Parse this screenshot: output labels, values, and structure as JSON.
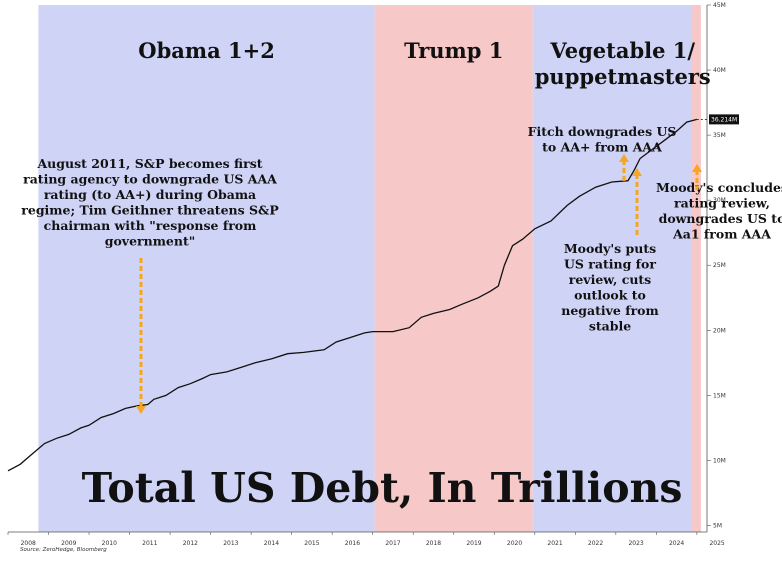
{
  "chart_data": {
    "type": "line",
    "title": "Total US Debt, In Trillions",
    "source": "Source: ZeroHedge, Bloomberg",
    "x_range": [
      2008.0,
      2025.25
    ],
    "y_range": [
      4.5,
      45
    ],
    "x_ticks": [
      "2008",
      "2009",
      "2010",
      "2011",
      "2012",
      "2013",
      "2014",
      "2015",
      "2016",
      "2017",
      "2018",
      "2019",
      "2020",
      "2021",
      "2022",
      "2023",
      "2024",
      "2025"
    ],
    "y_ticks": [
      {
        "value": 5,
        "label": "5M"
      },
      {
        "value": 10,
        "label": "10M"
      },
      {
        "value": 15,
        "label": "15M"
      },
      {
        "value": 20,
        "label": "20M"
      },
      {
        "value": 25,
        "label": "25M"
      },
      {
        "value": 30,
        "label": "30M"
      },
      {
        "value": 35,
        "label": "35M"
      },
      {
        "value": 40,
        "label": "40M"
      },
      {
        "value": 45,
        "label": "45M"
      }
    ],
    "last_value_label": "36.214M",
    "last_value": 36.21,
    "periods": [
      {
        "label_lines": [
          "Obama 1+2"
        ],
        "start": 2008.75,
        "end": 2017.05,
        "color": "#cfd3f5"
      },
      {
        "label_lines": [
          "Trump 1"
        ],
        "start": 2017.05,
        "end": 2020.95,
        "color": "#f7c8c8"
      },
      {
        "label_lines": [
          "Vegetable 1/",
          "puppetmasters"
        ],
        "start": 2020.95,
        "end": 2024.88,
        "color": "#cfd3f5"
      },
      {
        "label_lines": [],
        "start": 2024.88,
        "end": 2025.1,
        "color": "#f7c8c8"
      }
    ],
    "series": [
      {
        "color": "#111111",
        "x": [
          2008.0,
          2008.3,
          2008.6,
          2008.9,
          2009.2,
          2009.5,
          2009.8,
          2010.0,
          2010.3,
          2010.6,
          2010.9,
          2011.2,
          2011.45,
          2011.6,
          2011.9,
          2012.2,
          2012.5,
          2012.8,
          2013.0,
          2013.4,
          2013.8,
          2014.1,
          2014.5,
          2014.9,
          2015.3,
          2015.8,
          2016.1,
          2016.4,
          2016.8,
          2017.0,
          2017.5,
          2017.9,
          2018.2,
          2018.5,
          2018.9,
          2019.2,
          2019.6,
          2019.9,
          2020.1,
          2020.25,
          2020.45,
          2020.7,
          2021.0,
          2021.4,
          2021.8,
          2022.1,
          2022.5,
          2022.9,
          2023.3,
          2023.45,
          2023.6,
          2023.9,
          2024.2,
          2024.5,
          2024.75,
          2025.0
        ],
        "y": [
          9.2,
          9.7,
          10.5,
          11.3,
          11.7,
          12.0,
          12.5,
          12.7,
          13.3,
          13.6,
          14.0,
          14.2,
          14.3,
          14.7,
          15.0,
          15.6,
          15.9,
          16.3,
          16.6,
          16.8,
          17.2,
          17.5,
          17.8,
          18.2,
          18.3,
          18.5,
          19.1,
          19.4,
          19.8,
          19.9,
          19.9,
          20.2,
          21.0,
          21.3,
          21.6,
          22.0,
          22.5,
          23.0,
          23.4,
          25.0,
          26.5,
          27.0,
          27.8,
          28.4,
          29.6,
          30.3,
          31.0,
          31.4,
          31.5,
          32.3,
          33.2,
          33.9,
          34.6,
          35.3,
          36.0,
          36.21
        ]
      }
    ],
    "annotations": [
      {
        "lines": [
          "August 2011, S&P becomes first",
          "rating agency to downgrade US AAA",
          "rating (to AA+) during Obama",
          "regime; Tim Geithner threatens S&P",
          "chairman with \"response from",
          "government\""
        ],
        "x": 2011.1
      },
      {
        "lines": [
          "Fitch downgrades US",
          "to AA+ from AAA"
        ],
        "x": 2023.0
      },
      {
        "lines": [
          "Moody's puts",
          "US rating for",
          "review, cuts",
          "outlook to",
          "negative from",
          "stable"
        ],
        "x": 2023.35
      },
      {
        "lines": [
          "Moody's concludes",
          "rating review,",
          "downgrades US to",
          "Aa1 from AAA"
        ],
        "x": 2024.95
      }
    ]
  }
}
